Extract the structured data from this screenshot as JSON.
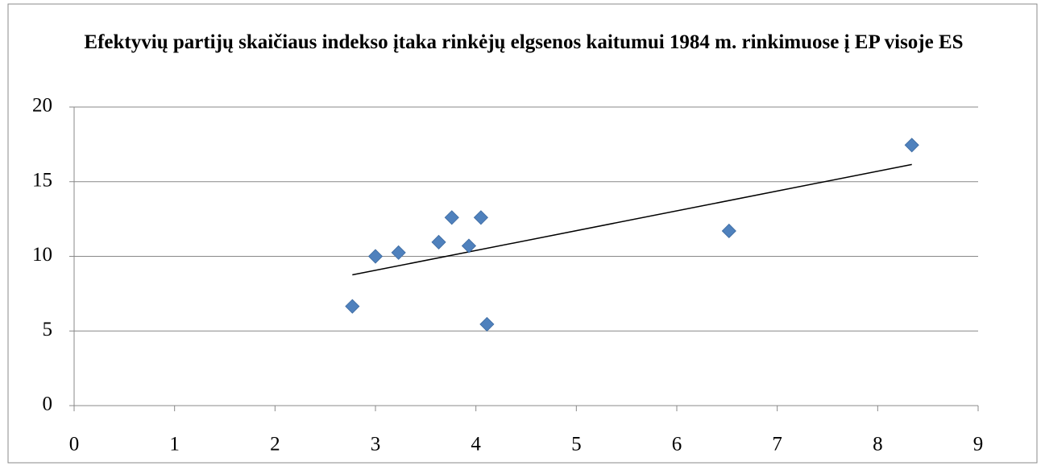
{
  "chart_data": {
    "type": "scatter",
    "title": "Efektyvių partijų skaičiaus indekso įtaka rinkėjų elgsenos kaitumui 1984 m. rinkimuose į EP visoje ES",
    "series": [
      {
        "color": "#4f81bd",
        "x": [
          2.77,
          3.0,
          3.23,
          3.63,
          3.76,
          3.93,
          4.05,
          4.11,
          6.52,
          8.34
        ],
        "values": [
          6.65,
          10.0,
          10.25,
          10.95,
          12.6,
          10.7,
          12.6,
          5.45,
          11.7,
          17.45
        ]
      }
    ],
    "trendline": true,
    "xlim": [
      0,
      9
    ],
    "xticks": [
      0,
      1,
      2,
      3,
      4,
      5,
      6,
      7,
      8,
      9
    ],
    "ylim": [
      0,
      20
    ],
    "yticks": [
      0,
      5,
      10,
      15,
      20
    ],
    "grid": true
  }
}
